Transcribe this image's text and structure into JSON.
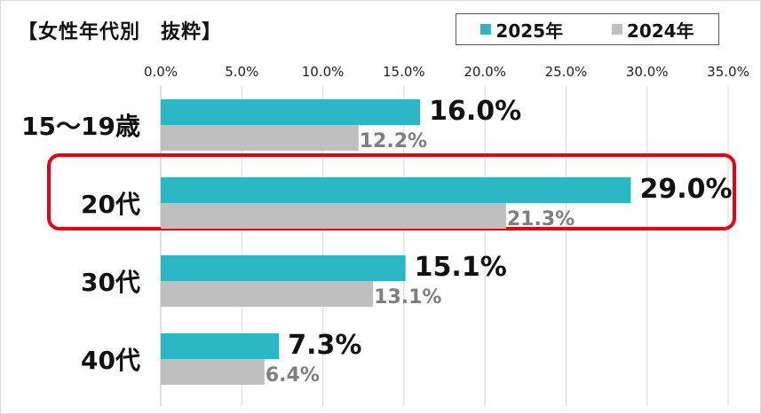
{
  "chart_data": {
    "type": "bar",
    "orientation": "horizontal",
    "title": "【女性年代別　抜粋】",
    "categories": [
      "15～19歳",
      "20代",
      "30代",
      "40代"
    ],
    "series": [
      {
        "name": "2025年",
        "values": [
          16.0,
          29.0,
          15.1,
          7.3
        ],
        "color": "#2bb8c4",
        "labels": [
          "16.0%",
          "29.0%",
          "15.1%",
          "7.3%"
        ]
      },
      {
        "name": "2024年",
        "values": [
          12.2,
          21.3,
          13.1,
          6.4
        ],
        "color": "#bfbfbf",
        "labels": [
          "12.2%",
          "21.3%",
          "13.1%",
          "6.4%"
        ]
      }
    ],
    "xlim": [
      0,
      35
    ],
    "ticks": [
      "0.0%",
      "5.0%",
      "10.0%",
      "15.0%",
      "20.0%",
      "25.0%",
      "30.0%",
      "35.0%"
    ],
    "grid": true,
    "legend_position": "top-right",
    "highlight_category": "20代",
    "highlight_color": "#e60012"
  }
}
